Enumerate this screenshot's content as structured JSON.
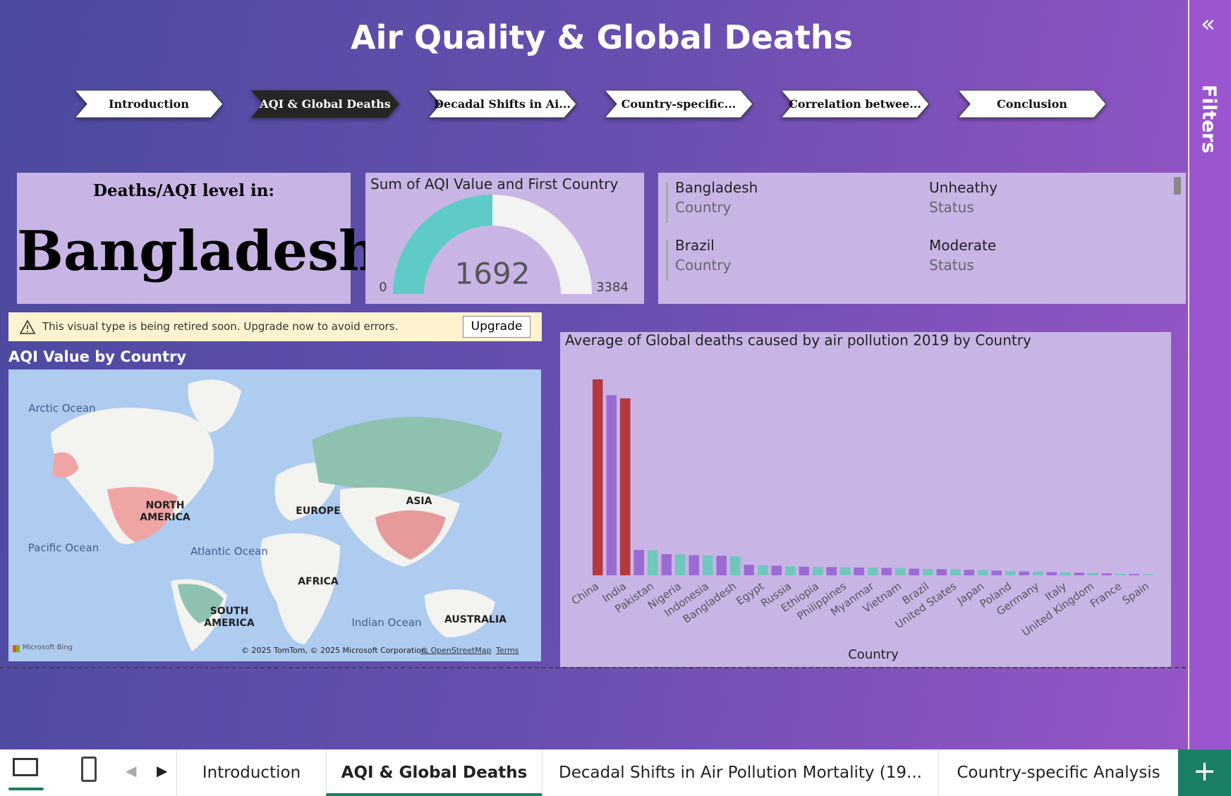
{
  "header": {
    "title": "Air Quality & Global Deaths"
  },
  "nav": [
    "Introduction",
    "AQI & Global Deaths",
    "Decadal Shifts in Ai...",
    "Country-specific...",
    "Correlation betwee...",
    "Conclusion"
  ],
  "nav_active": 1,
  "selection_card": {
    "heading": "Deaths/AQI level in:",
    "country": "Bangladesh"
  },
  "gauge": {
    "title": "Sum of AQI Value and First Country",
    "value": 1692,
    "min": 0,
    "max": 3384,
    "color": "#5ecbc8"
  },
  "table": {
    "rows": [
      {
        "country": "Bangladesh",
        "country_label": "Country",
        "status": "Unheathy",
        "status_label": "Status"
      },
      {
        "country": "Brazil",
        "country_label": "Country",
        "status": "Moderate",
        "status_label": "Status"
      }
    ]
  },
  "warning": {
    "message": "This visual type is being retired soon. Upgrade now to avoid errors.",
    "button": "Upgrade"
  },
  "map": {
    "title": "AQI Value by Country",
    "labels": [
      "Arctic Ocean",
      "NORTH AMERICA",
      "Pacific Ocean",
      "Atlantic Ocean",
      "EUROPE",
      "ASIA",
      "AFRICA",
      "SOUTH AMERICA",
      "Indian Ocean",
      "AUSTRALIA"
    ],
    "attribution": "Microsoft Bing",
    "copyright": "© 2025 TomTom, © 2025 Microsoft Corporation,",
    "osm": "© OpenStreetMap",
    "terms": "Terms"
  },
  "chart_data": {
    "type": "bar",
    "title": "Average of Global deaths caused by air pollution 2019 by Country",
    "x_label": "Country",
    "categories": [
      "China",
      null,
      "India",
      null,
      "Pakistan",
      null,
      "Nigeria",
      null,
      "Indonesia",
      null,
      "Bangladesh",
      null,
      "Egypt",
      null,
      "Russia",
      null,
      "Ethiopia",
      null,
      "Philippines",
      null,
      "Myanmar",
      null,
      "Vietnam",
      null,
      "Brazil",
      null,
      "United States",
      null,
      "Japan",
      null,
      "Poland",
      null,
      "Germany",
      null,
      "Italy",
      null,
      "United Kingdom",
      null,
      "France",
      null,
      "Spain"
    ],
    "values": [
      1850000,
      1700000,
      1670000,
      240000,
      236000,
      200000,
      198000,
      190000,
      188000,
      185000,
      180000,
      100000,
      96000,
      90000,
      85000,
      82000,
      80000,
      78000,
      75000,
      73000,
      72000,
      70000,
      68000,
      63000,
      60000,
      58000,
      56000,
      52000,
      50000,
      45000,
      40000,
      36000,
      33000,
      30000,
      28000,
      25000,
      22000,
      18000,
      15000,
      12000,
      10000
    ],
    "colors": [
      "#b5383f",
      "#9b6bd4",
      "#b5383f",
      "#9b6bd4",
      "#6fc7bd",
      "#9b6bd4",
      "#6fc7bd",
      "#9b6bd4",
      "#6fc7bd",
      "#9b6bd4",
      "#6fc7bd",
      "#9b6bd4",
      "#6fc7bd",
      "#9b6bd4",
      "#6fc7bd",
      "#9b6bd4",
      "#6fc7bd",
      "#9b6bd4",
      "#6fc7bd",
      "#9b6bd4",
      "#6fc7bd",
      "#9b6bd4",
      "#6fc7bd",
      "#9b6bd4",
      "#6fc7bd",
      "#9b6bd4",
      "#6fc7bd",
      "#9b6bd4",
      "#6fc7bd",
      "#9b6bd4",
      "#6fc7bd",
      "#9b6bd4",
      "#6fc7bd",
      "#9b6bd4",
      "#6fc7bd",
      "#9b6bd4",
      "#6fc7bd",
      "#9b6bd4",
      "#6fc7bd",
      "#9b6bd4",
      "#6fc7bd"
    ]
  },
  "tabs": [
    "Introduction",
    "AQI & Global Deaths",
    "Decadal Shifts in Air Pollution Mortality (19...",
    "Country-specific Analysis"
  ],
  "tab_active": 1,
  "filters": "Filters"
}
